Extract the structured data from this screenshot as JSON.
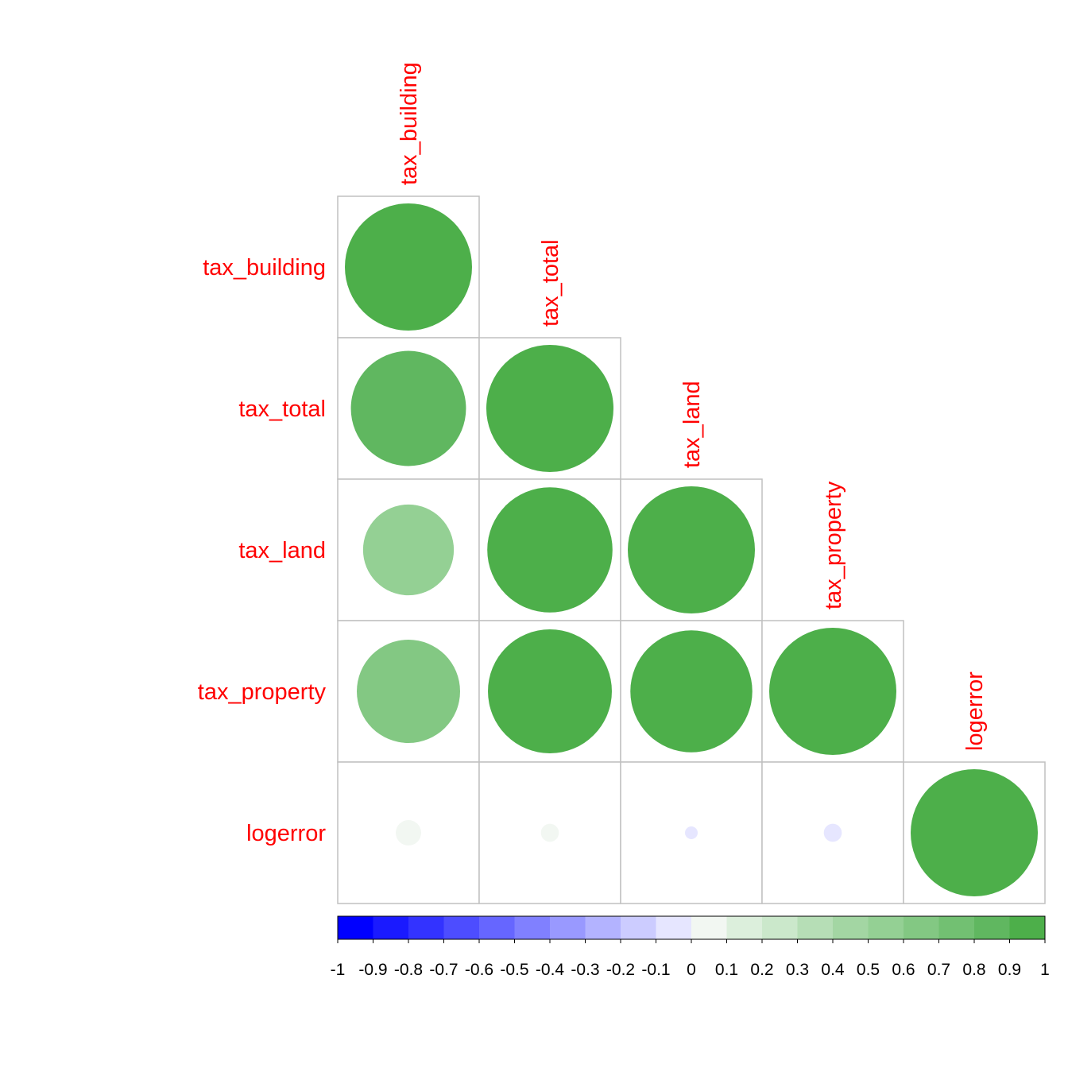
{
  "chart_data": {
    "type": "heatmap",
    "variables": [
      "tax_building",
      "tax_total",
      "tax_land",
      "tax_property",
      "logerror"
    ],
    "matrix_shape": "lower-triangular",
    "glyph": "circle",
    "values": [
      [
        1.0,
        null,
        null,
        null,
        null
      ],
      [
        0.82,
        1.0,
        null,
        null,
        null
      ],
      [
        0.51,
        0.97,
        1.0,
        null,
        null
      ],
      [
        0.66,
        0.95,
        0.92,
        1.0,
        null
      ],
      [
        0.04,
        0.02,
        -0.01,
        -0.02,
        1.0
      ]
    ],
    "colorbar": {
      "ticks": [
        "-1",
        "-0.9",
        "-0.8",
        "-0.7",
        "-0.6",
        "-0.5",
        "-0.4",
        "-0.3",
        "-0.2",
        "-0.1",
        "0",
        "0.1",
        "0.2",
        "0.3",
        "0.4",
        "0.5",
        "0.6",
        "0.7",
        "0.8",
        "0.9",
        "1"
      ],
      "range": [
        -1,
        1
      ],
      "colors": [
        "#0000FF",
        "#1A1AFF",
        "#3333FF",
        "#4D4DFF",
        "#6666FF",
        "#8080FF",
        "#9999FF",
        "#B3B3FF",
        "#CCCCFF",
        "#E6E6FF",
        "#F2F7F2",
        "#DCEFDC",
        "#CBE8CB",
        "#B6DEB6",
        "#A3D6A3",
        "#94D094",
        "#83C883",
        "#72C072",
        "#60B760",
        "#4DAF4A"
      ]
    },
    "label_color": "#FF0000",
    "grid_color": "#C0C0C0",
    "title": "",
    "xlabel": "",
    "ylabel": ""
  }
}
